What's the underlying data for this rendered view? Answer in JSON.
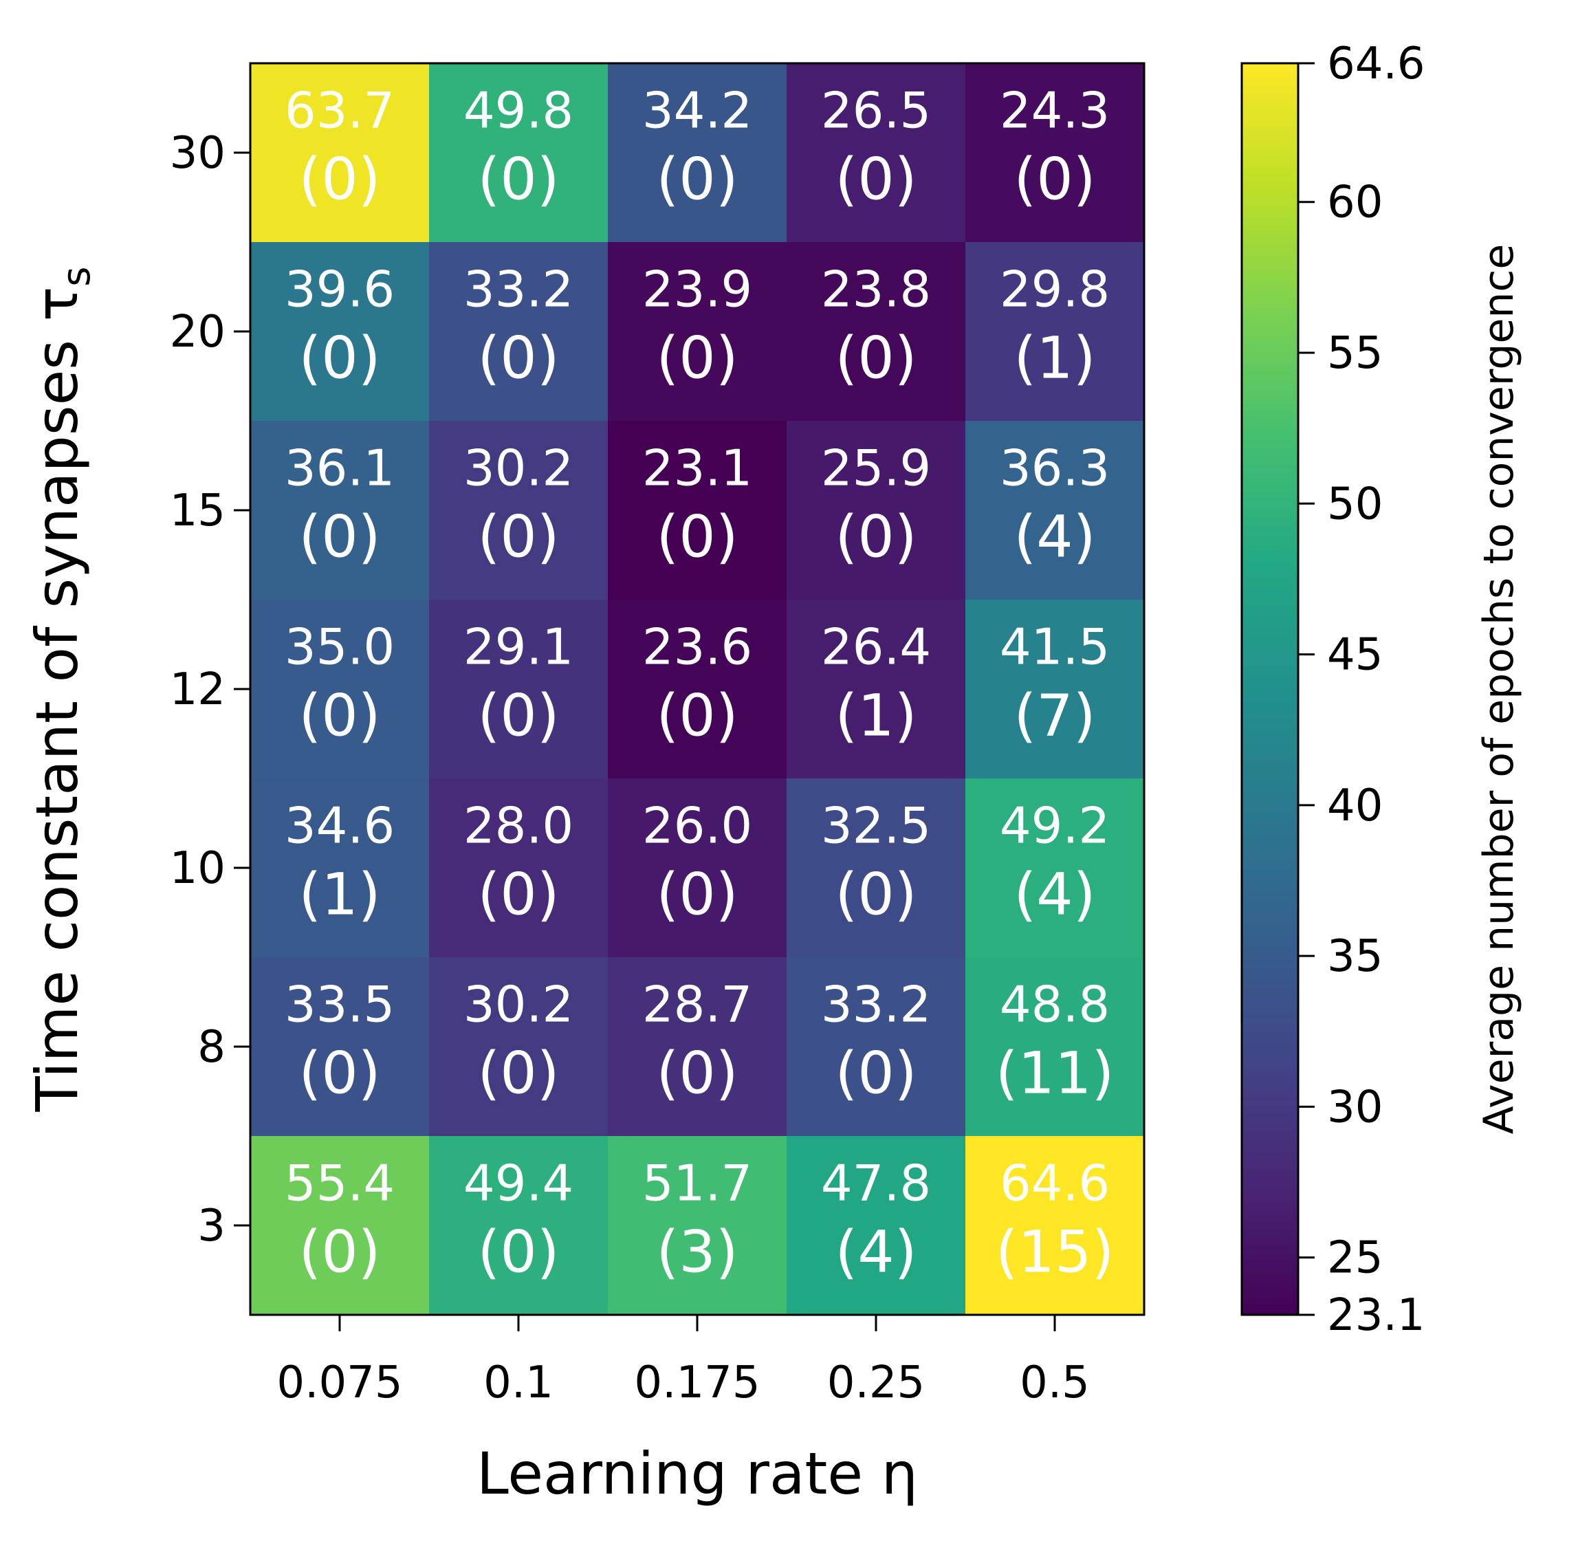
{
  "chart_data": {
    "type": "heatmap",
    "xlabel": "Learning rate η",
    "ylabel": "Time constant of synapses τ",
    "ylabel_sub": "s",
    "x_categories": [
      "0.075",
      "0.1",
      "0.175",
      "0.25",
      "0.5"
    ],
    "y_categories": [
      "30",
      "20",
      "15",
      "12",
      "10",
      "8",
      "3"
    ],
    "values": [
      [
        63.7,
        49.8,
        34.2,
        26.5,
        24.3
      ],
      [
        39.6,
        33.2,
        23.9,
        23.8,
        29.8
      ],
      [
        36.1,
        30.2,
        23.1,
        25.9,
        36.3
      ],
      [
        35.0,
        29.1,
        23.6,
        26.4,
        41.5
      ],
      [
        34.6,
        28.0,
        26.0,
        32.5,
        49.2
      ],
      [
        33.5,
        30.2,
        28.7,
        33.2,
        48.8
      ],
      [
        55.4,
        49.4,
        51.7,
        47.8,
        64.6
      ]
    ],
    "value_labels": [
      [
        "63.7",
        "49.8",
        "34.2",
        "26.5",
        "24.3"
      ],
      [
        "39.6",
        "33.2",
        "23.9",
        "23.8",
        "29.8"
      ],
      [
        "36.1",
        "30.2",
        "23.1",
        "25.9",
        "36.3"
      ],
      [
        "35.0",
        "29.1",
        "23.6",
        "26.4",
        "41.5"
      ],
      [
        "34.6",
        "28.0",
        "26.0",
        "32.5",
        "49.2"
      ],
      [
        "33.5",
        "30.2",
        "28.7",
        "33.2",
        "48.8"
      ],
      [
        "55.4",
        "49.4",
        "51.7",
        "47.8",
        "64.6"
      ]
    ],
    "counts": [
      [
        "(0)",
        "(0)",
        "(0)",
        "(0)",
        "(0)"
      ],
      [
        "(0)",
        "(0)",
        "(0)",
        "(0)",
        "(1)"
      ],
      [
        "(0)",
        "(0)",
        "(0)",
        "(0)",
        "(4)"
      ],
      [
        "(0)",
        "(0)",
        "(0)",
        "(1)",
        "(7)"
      ],
      [
        "(1)",
        "(0)",
        "(0)",
        "(0)",
        "(4)"
      ],
      [
        "(0)",
        "(0)",
        "(0)",
        "(0)",
        "(11)"
      ],
      [
        "(0)",
        "(0)",
        "(3)",
        "(4)",
        "(15)"
      ]
    ],
    "colorbar": {
      "label": "Average number of epochs to convergence",
      "colormap": "viridis",
      "range": [
        23.1,
        64.6
      ],
      "ticks": [
        23.1,
        25,
        30,
        35,
        40,
        45,
        50,
        55,
        60,
        64.6
      ],
      "tick_labels": [
        "23.1",
        "25",
        "30",
        "35",
        "40",
        "45",
        "50",
        "55",
        "60",
        "64.6"
      ]
    },
    "text_color": "#ffffff"
  }
}
